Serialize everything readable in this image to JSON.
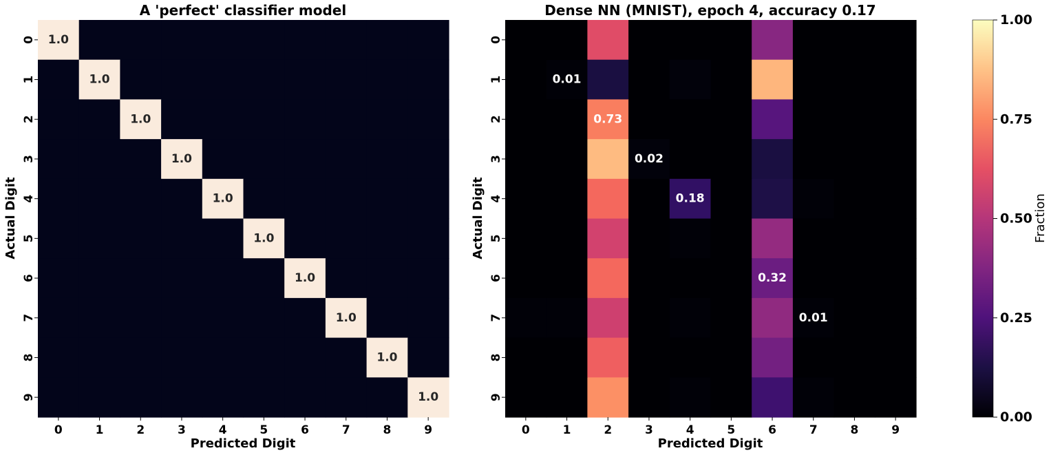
{
  "chart_data": [
    {
      "type": "heatmap",
      "title": "A 'perfect' classifier model",
      "xlabel": "Predicted Digit",
      "ylabel": "Actual Digit",
      "x_categories": [
        "0",
        "1",
        "2",
        "3",
        "4",
        "5",
        "6",
        "7",
        "8",
        "9"
      ],
      "y_categories": [
        "0",
        "1",
        "2",
        "3",
        "4",
        "5",
        "6",
        "7",
        "8",
        "9"
      ],
      "values": [
        [
          1,
          0,
          0,
          0,
          0,
          0,
          0,
          0,
          0,
          0
        ],
        [
          0,
          1,
          0,
          0,
          0,
          0,
          0,
          0,
          0,
          0
        ],
        [
          0,
          0,
          1,
          0,
          0,
          0,
          0,
          0,
          0,
          0
        ],
        [
          0,
          0,
          0,
          1,
          0,
          0,
          0,
          0,
          0,
          0
        ],
        [
          0,
          0,
          0,
          0,
          1,
          0,
          0,
          0,
          0,
          0
        ],
        [
          0,
          0,
          0,
          0,
          0,
          1,
          0,
          0,
          0,
          0
        ],
        [
          0,
          0,
          0,
          0,
          0,
          0,
          1,
          0,
          0,
          0
        ],
        [
          0,
          0,
          0,
          0,
          0,
          0,
          0,
          1,
          0,
          0
        ],
        [
          0,
          0,
          0,
          0,
          0,
          0,
          0,
          0,
          1,
          0
        ],
        [
          0,
          0,
          0,
          0,
          0,
          0,
          0,
          0,
          0,
          1
        ]
      ],
      "annotations": [
        {
          "row": 0,
          "col": 0,
          "text": "1.0"
        },
        {
          "row": 1,
          "col": 1,
          "text": "1.0"
        },
        {
          "row": 2,
          "col": 2,
          "text": "1.0"
        },
        {
          "row": 3,
          "col": 3,
          "text": "1.0"
        },
        {
          "row": 4,
          "col": 4,
          "text": "1.0"
        },
        {
          "row": 5,
          "col": 5,
          "text": "1.0"
        },
        {
          "row": 6,
          "col": 6,
          "text": "1.0"
        },
        {
          "row": 7,
          "col": 7,
          "text": "1.0"
        },
        {
          "row": 8,
          "col": 8,
          "text": "1.0"
        },
        {
          "row": 9,
          "col": 9,
          "text": "1.0"
        }
      ],
      "colormap": {
        "low": "#03051a",
        "high": "#faebdd"
      },
      "annotation_color": "#262626"
    },
    {
      "type": "heatmap",
      "title": "Dense NN (MNIST), epoch 4, accuracy 0.17",
      "xlabel": "Predicted Digit",
      "ylabel": "Actual Digit",
      "x_categories": [
        "0",
        "1",
        "2",
        "3",
        "4",
        "5",
        "6",
        "7",
        "8",
        "9"
      ],
      "y_categories": [
        "0",
        "1",
        "2",
        "3",
        "4",
        "5",
        "6",
        "7",
        "8",
        "9"
      ],
      "values": [
        [
          0,
          0,
          0.61,
          0,
          0,
          0,
          0.39,
          0,
          0,
          0
        ],
        [
          0,
          0.01,
          0.12,
          0,
          0.02,
          0,
          0.85,
          0,
          0,
          0
        ],
        [
          0,
          0,
          0.73,
          0,
          0,
          0,
          0.27,
          0,
          0,
          0
        ],
        [
          0,
          0,
          0.86,
          0.02,
          0,
          0,
          0.12,
          0,
          0,
          0
        ],
        [
          0,
          0,
          0.68,
          0,
          0.18,
          0,
          0.13,
          0.01,
          0,
          0
        ],
        [
          0,
          0,
          0.57,
          0,
          0.01,
          0,
          0.42,
          0,
          0,
          0
        ],
        [
          0,
          0,
          0.68,
          0,
          0,
          0,
          0.32,
          0,
          0,
          0
        ],
        [
          0.01,
          0.01,
          0.56,
          0,
          0.01,
          0,
          0.41,
          0.01,
          0,
          0
        ],
        [
          0,
          0,
          0.66,
          0,
          0,
          0,
          0.34,
          0,
          0,
          0
        ],
        [
          0,
          0,
          0.77,
          0,
          0.01,
          0,
          0.21,
          0.01,
          0,
          0
        ]
      ],
      "annotations": [
        {
          "row": 1,
          "col": 1,
          "text": "0.01"
        },
        {
          "row": 2,
          "col": 2,
          "text": "0.73"
        },
        {
          "row": 3,
          "col": 3,
          "text": "0.02"
        },
        {
          "row": 4,
          "col": 4,
          "text": "0.18"
        },
        {
          "row": 6,
          "col": 6,
          "text": "0.32"
        },
        {
          "row": 7,
          "col": 7,
          "text": "0.01"
        }
      ],
      "colormap": "magma",
      "annotation_color": "#ffffff"
    }
  ],
  "colorbar": {
    "label": "Fraction",
    "colormap": "magma",
    "range": [
      0,
      1
    ],
    "ticks": [
      {
        "value": 0,
        "label": "0.00"
      },
      {
        "value": 0.25,
        "label": "0.25"
      },
      {
        "value": 0.5,
        "label": "0.50"
      },
      {
        "value": 0.75,
        "label": "0.75"
      },
      {
        "value": 1,
        "label": "1.00"
      }
    ]
  }
}
